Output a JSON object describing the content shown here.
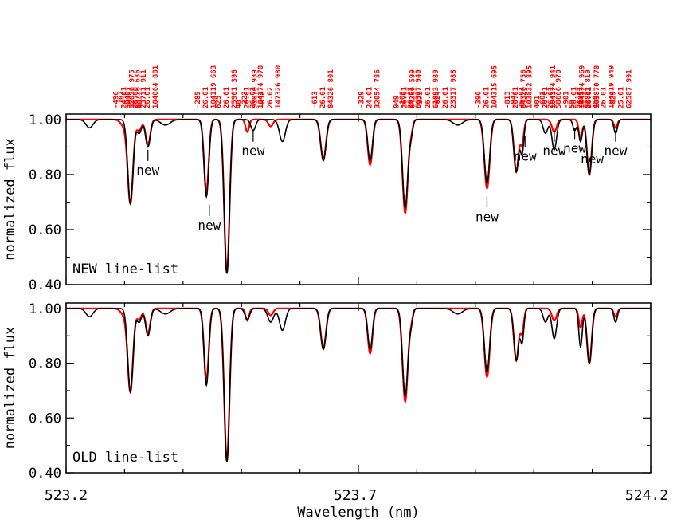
{
  "chart_data": {
    "type": "line",
    "xlabel": "Wavelength (nm)",
    "ylabel": "normalized flux",
    "xlim": [
      523.2,
      524.2
    ],
    "x_ticks": [
      "523.2",
      "523.7",
      "524.2"
    ],
    "ylim": [
      0.4,
      1.02
    ],
    "y_ticks": [
      "0.40",
      "0.60",
      "0.80",
      "1.00"
    ],
    "colors": {
      "observed": "#ff0000",
      "synthetic": "#000000",
      "id_labels": "#ff0000"
    },
    "line_ids": [
      {
        "x": 523.3,
        "lines": [
          "-496",
          "24.01",
          "32036 975"
        ]
      },
      {
        "x": 523.31,
        "lines": [
          "-787",
          "26.01",
          "83726 636"
        ]
      },
      {
        "x": 523.32,
        "lines": [
          "-940",
          "26.00",
          "23711 911"
        ]
      },
      {
        "x": 523.34,
        "lines": [
          "46",
          "26.01",
          "104064 881"
        ]
      },
      {
        "x": 523.44,
        "lines": [
          "-285",
          "26.01",
          "104119 663"
        ]
      },
      {
        "x": 523.475,
        "lines": [
          "625",
          "26.01",
          "25901 396"
        ]
      },
      {
        "x": 523.51,
        "lines": [
          "40",
          "26.01",
          "91070 939"
        ]
      },
      {
        "x": 523.52,
        "lines": [
          "-223",
          "26.01",
          "104174 970"
        ]
      },
      {
        "x": 523.55,
        "lines": [
          "-658",
          "26.02",
          "147326 980"
        ]
      },
      {
        "x": 523.64,
        "lines": [
          "-613",
          "26.01",
          "84326 801"
        ]
      },
      {
        "x": 523.72,
        "lines": [
          "-329",
          "24.01",
          "32054 786"
        ]
      },
      {
        "x": 523.78,
        "lines": [
          "949",
          "26.01",
          "84266 599"
        ]
      },
      {
        "x": 523.79,
        "lines": [
          "-100",
          "26.01",
          "66377 940"
        ]
      },
      {
        "x": 523.82,
        "lines": [
          "-379",
          "26.01",
          "61093 989"
        ]
      },
      {
        "x": 523.85,
        "lines": [
          "-624",
          "26.01",
          "23317 988"
        ]
      },
      {
        "x": 523.92,
        "lines": [
          "-390",
          "26.01",
          "104315 695"
        ]
      },
      {
        "x": 523.97,
        "lines": [
          "-813",
          "26.01",
          "84326 756"
        ]
      },
      {
        "x": 523.98,
        "lines": [
          "-942",
          "26.01",
          "103832 895"
        ]
      },
      {
        "x": 524.02,
        "lines": [
          "401",
          "26.01",
          "104174 941"
        ]
      },
      {
        "x": 524.03,
        "lines": [
          "-601",
          "26.01",
          "58666 970"
        ]
      },
      {
        "x": 524.07,
        "lines": [
          "-901",
          "26.01",
          "104174 969"
        ]
      },
      {
        "x": 524.08,
        "lines": [
          "59",
          "26.01",
          "83812 819"
        ]
      },
      {
        "x": 524.095,
        "lines": [
          "-181",
          "26.01",
          "103870 770"
        ]
      },
      {
        "x": 524.12,
        "lines": [
          "450",
          "26.01",
          "104119 949"
        ]
      },
      {
        "x": 524.15,
        "lines": [
          "-829",
          "25.01",
          "62587 991"
        ]
      }
    ],
    "panels": [
      {
        "name": "NEW line-list",
        "label": "NEW line-list",
        "annotations": [
          {
            "text": "new",
            "x": 523.34,
            "y": 0.89
          },
          {
            "text": "new",
            "x": 523.445,
            "y": 0.69
          },
          {
            "text": "new",
            "x": 523.52,
            "y": 0.96
          },
          {
            "text": "new",
            "x": 523.92,
            "y": 0.72
          },
          {
            "text": "new",
            "x": 523.985,
            "y": 0.94
          },
          {
            "text": "new",
            "x": 524.035,
            "y": 0.96
          },
          {
            "text": "new",
            "x": 524.07,
            "y": 0.97
          },
          {
            "text": "new",
            "x": 524.1,
            "y": 0.93
          },
          {
            "text": "new",
            "x": 524.14,
            "y": 0.96
          }
        ],
        "series": [
          {
            "role": "observed",
            "lines": [
              [
                523.3,
                0.025,
                0.006
              ],
              [
                523.31,
                0.3,
                0.0045
              ],
              [
                523.325,
                0.04,
                0.004
              ],
              [
                523.34,
                0.09,
                0.004
              ],
              [
                523.44,
                0.26,
                0.004
              ],
              [
                523.475,
                0.555,
                0.0045
              ],
              [
                523.51,
                0.045,
                0.003
              ],
              [
                523.55,
                0.025,
                0.004
              ],
              [
                523.64,
                0.145,
                0.0045
              ],
              [
                523.72,
                0.165,
                0.004
              ],
              [
                523.78,
                0.34,
                0.0045
              ],
              [
                523.79,
                0.04,
                0.003
              ],
              [
                523.92,
                0.25,
                0.0045
              ],
              [
                523.97,
                0.19,
                0.004
              ],
              [
                523.98,
                0.085,
                0.003
              ],
              [
                524.035,
                0.045,
                0.004
              ],
              [
                524.08,
                0.07,
                0.003
              ],
              [
                524.095,
                0.2,
                0.004
              ],
              [
                524.14,
                0.03,
                0.003
              ]
            ]
          },
          {
            "role": "synthetic",
            "lines": [
              [
                523.31,
                0.305,
                0.0045
              ],
              [
                523.325,
                0.05,
                0.004
              ],
              [
                523.34,
                0.1,
                0.004
              ],
              [
                523.44,
                0.28,
                0.004
              ],
              [
                523.475,
                0.56,
                0.0045
              ],
              [
                523.52,
                0.04,
                0.004
              ],
              [
                523.57,
                0.08,
                0.005
              ],
              [
                523.64,
                0.15,
                0.0045
              ],
              [
                523.72,
                0.15,
                0.004
              ],
              [
                523.78,
                0.32,
                0.0045
              ],
              [
                523.79,
                0.05,
                0.003
              ],
              [
                523.92,
                0.23,
                0.0045
              ],
              [
                523.97,
                0.19,
                0.004
              ],
              [
                523.98,
                0.12,
                0.003
              ],
              [
                524.02,
                0.05,
                0.004
              ],
              [
                524.035,
                0.11,
                0.004
              ],
              [
                524.07,
                0.04,
                0.003
              ],
              [
                524.08,
                0.08,
                0.003
              ],
              [
                524.095,
                0.2,
                0.004
              ],
              [
                524.14,
                0.05,
                0.003
              ],
              [
                523.24,
                0.03,
                0.006
              ],
              [
                523.37,
                0.02,
                0.008
              ],
              [
                523.87,
                0.02,
                0.008
              ]
            ]
          }
        ]
      },
      {
        "name": "OLD line-list",
        "label": "OLD line-list",
        "annotations": [],
        "series": [
          {
            "role": "observed",
            "lines": [
              [
                523.3,
                0.025,
                0.006
              ],
              [
                523.31,
                0.3,
                0.0045
              ],
              [
                523.325,
                0.04,
                0.004
              ],
              [
                523.34,
                0.09,
                0.004
              ],
              [
                523.44,
                0.26,
                0.004
              ],
              [
                523.475,
                0.555,
                0.0045
              ],
              [
                523.51,
                0.045,
                0.003
              ],
              [
                523.55,
                0.025,
                0.004
              ],
              [
                523.64,
                0.145,
                0.0045
              ],
              [
                523.72,
                0.165,
                0.004
              ],
              [
                523.78,
                0.34,
                0.0045
              ],
              [
                523.79,
                0.04,
                0.003
              ],
              [
                523.92,
                0.25,
                0.0045
              ],
              [
                523.97,
                0.19,
                0.004
              ],
              [
                523.98,
                0.085,
                0.003
              ],
              [
                524.035,
                0.045,
                0.004
              ],
              [
                524.08,
                0.07,
                0.003
              ],
              [
                524.095,
                0.2,
                0.004
              ],
              [
                524.14,
                0.03,
                0.003
              ]
            ]
          },
          {
            "role": "synthetic",
            "lines": [
              [
                523.31,
                0.305,
                0.0045
              ],
              [
                523.325,
                0.05,
                0.004
              ],
              [
                523.34,
                0.1,
                0.004
              ],
              [
                523.44,
                0.28,
                0.004
              ],
              [
                523.475,
                0.56,
                0.0045
              ],
              [
                523.51,
                0.04,
                0.004
              ],
              [
                523.55,
                0.05,
                0.005
              ],
              [
                523.57,
                0.08,
                0.005
              ],
              [
                523.64,
                0.15,
                0.0045
              ],
              [
                523.72,
                0.15,
                0.004
              ],
              [
                523.78,
                0.32,
                0.0045
              ],
              [
                523.79,
                0.05,
                0.003
              ],
              [
                523.92,
                0.23,
                0.0045
              ],
              [
                523.97,
                0.19,
                0.004
              ],
              [
                523.98,
                0.12,
                0.003
              ],
              [
                524.02,
                0.05,
                0.004
              ],
              [
                524.035,
                0.11,
                0.004
              ],
              [
                524.08,
                0.14,
                0.003
              ],
              [
                524.095,
                0.2,
                0.004
              ],
              [
                524.14,
                0.05,
                0.003
              ],
              [
                523.24,
                0.03,
                0.006
              ],
              [
                523.37,
                0.02,
                0.008
              ],
              [
                523.87,
                0.02,
                0.008
              ]
            ]
          }
        ]
      }
    ]
  }
}
